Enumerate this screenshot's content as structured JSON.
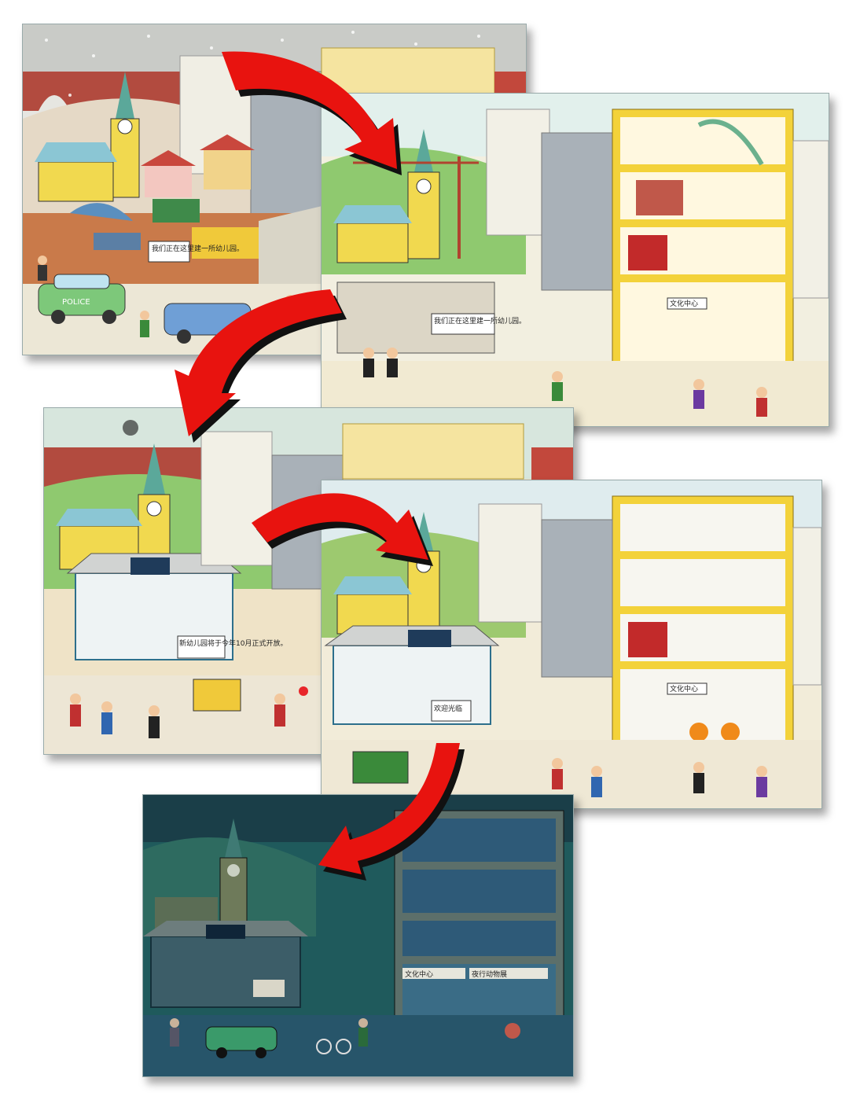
{
  "panels": [
    {
      "scene": "winter",
      "season_colors": {
        "sky": "#d9dcd8",
        "ground": "#e9e3cf"
      },
      "signs": [
        "我们正在这里建一所幼儿园。"
      ],
      "car_label": "POLICE"
    },
    {
      "scene": "spring",
      "season_colors": {
        "sky": "#dfeee6",
        "ground": "#f1ead2"
      },
      "signs": [
        "我们正在这里建一所幼儿园。",
        "文化中心"
      ]
    },
    {
      "scene": "summer",
      "season_colors": {
        "sky": "#d7e6dd",
        "ground": "#efe3c7"
      },
      "signs": [
        "新幼儿园将于今年10月正式开放。"
      ]
    },
    {
      "scene": "autumn",
      "season_colors": {
        "sky": "#dfecee",
        "ground": "#f2ecd9"
      },
      "signs": [
        "欢迎光临",
        "文化中心"
      ]
    },
    {
      "scene": "night",
      "season_colors": {
        "sky": "#1c4f55",
        "ground": "#2e6b60"
      },
      "signs": [
        "文化中心",
        "夜行动物展"
      ]
    }
  ],
  "colors": {
    "arrow": "#e8130f",
    "arrow_shadow": "#111111",
    "building_yellow": "#f3d23a",
    "church": "#f1d94f"
  }
}
